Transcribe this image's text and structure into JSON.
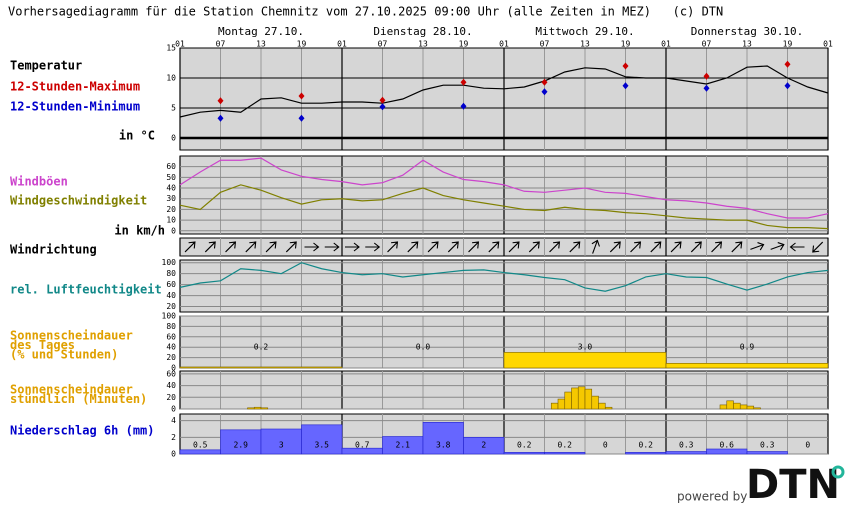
{
  "title": "Vorhersagediagramm für die Station Chemnitz vom 27.10.2025 09:00 Uhr (alle Zeiten in MEZ)   (c) DTN",
  "powered_by": "powered by",
  "logo": "DTN",
  "chart_data": [
    {
      "type": "line",
      "label": "Temperatur",
      "unit": "in °C",
      "days": [
        "Montag 27.10.",
        "Dienstag 28.10.",
        "Mittwoch 29.10.",
        "Donnerstag 30.10."
      ],
      "xlim": [
        0,
        96
      ],
      "xticks": [
        {
          "value": 0,
          "label": "01"
        },
        {
          "value": 6,
          "label": "07"
        },
        {
          "value": 12,
          "label": "13"
        },
        {
          "value": 18,
          "label": "19"
        },
        {
          "value": 24,
          "label": "01"
        },
        {
          "value": 30,
          "label": "07"
        },
        {
          "value": 36,
          "label": "13"
        },
        {
          "value": 42,
          "label": "19"
        },
        {
          "value": 48,
          "label": "01"
        },
        {
          "value": 54,
          "label": "07"
        },
        {
          "value": 60,
          "label": "13"
        },
        {
          "value": 66,
          "label": "19"
        },
        {
          "value": 72,
          "label": "01"
        },
        {
          "value": 78,
          "label": "07"
        },
        {
          "value": 84,
          "label": "13"
        },
        {
          "value": 90,
          "label": "19"
        },
        {
          "value": 96,
          "label": "01"
        }
      ],
      "ylim": [
        -2,
        15
      ],
      "yticks": [
        0,
        5,
        10,
        15
      ],
      "x": [
        0,
        3,
        6,
        9,
        12,
        15,
        18,
        21,
        24,
        27,
        30,
        33,
        36,
        39,
        42,
        45,
        48,
        51,
        54,
        57,
        60,
        63,
        66,
        69,
        72,
        75,
        78,
        81,
        84,
        87,
        90,
        93,
        96
      ],
      "series": [
        {
          "color": "#000000",
          "values": [
            3.5,
            4.3,
            4.6,
            4.3,
            6.5,
            6.7,
            5.8,
            5.8,
            6.0,
            6.0,
            5.8,
            6.5,
            8.0,
            8.8,
            8.8,
            8.3,
            8.2,
            8.5,
            9.5,
            11,
            11.7,
            11.5,
            10.2,
            10,
            10,
            9.5,
            9,
            10,
            11.8,
            12,
            10,
            8.5,
            7.5
          ]
        }
      ],
      "markers": [
        {
          "name": "12-Stunden-Maximum",
          "color": "#cc0000",
          "x": [
            6,
            18,
            30,
            42,
            54,
            66,
            78,
            90
          ],
          "values": [
            6.2,
            7.0,
            6.3,
            9.3,
            9.3,
            12,
            10.3,
            12.3
          ]
        },
        {
          "name": "12-Stunden-Minimum",
          "color": "#0000cc",
          "x": [
            6,
            18,
            30,
            42,
            54,
            66,
            78,
            90
          ],
          "values": [
            3.3,
            3.3,
            5.2,
            5.3,
            7.7,
            8.7,
            8.3,
            8.7
          ]
        }
      ]
    },
    {
      "type": "line",
      "unit": "in km/h",
      "ylim": [
        -3,
        70
      ],
      "yticks": [
        0,
        10,
        20,
        30,
        40,
        50,
        60
      ],
      "x": [
        0,
        3,
        6,
        9,
        12,
        15,
        18,
        21,
        24,
        27,
        30,
        33,
        36,
        39,
        42,
        45,
        48,
        51,
        54,
        57,
        60,
        63,
        66,
        69,
        72,
        75,
        78,
        81,
        84,
        87,
        90,
        93,
        96
      ],
      "series": [
        {
          "name": "Windböen",
          "color": "#cc44cc",
          "values": [
            43,
            55,
            66,
            66,
            68,
            57,
            51,
            48,
            46,
            43,
            45,
            52,
            66,
            55,
            48,
            46,
            43,
            37,
            36,
            38,
            40,
            36,
            35,
            32,
            29,
            28,
            26,
            23,
            21,
            16,
            12,
            12,
            16
          ]
        },
        {
          "name": "Windgeschwindigkeit",
          "color": "#808000",
          "values": [
            24,
            20,
            36,
            43,
            38,
            31,
            25,
            29,
            30,
            28,
            29,
            35,
            40,
            33,
            29,
            26,
            23,
            20,
            19,
            22,
            20,
            19,
            17,
            16,
            14,
            12,
            11,
            10,
            10,
            5,
            3,
            3,
            2
          ]
        }
      ]
    },
    {
      "type": "arrows",
      "label": "Windrichtung",
      "x": [
        0,
        3,
        6,
        9,
        12,
        15,
        18,
        21,
        24,
        27,
        30,
        33,
        36,
        39,
        42,
        45,
        48,
        51,
        54,
        57,
        60,
        63,
        66,
        69,
        72,
        75,
        78,
        81,
        84,
        87,
        90,
        93
      ],
      "directions": [
        225,
        225,
        225,
        225,
        225,
        225,
        270,
        270,
        270,
        270,
        225,
        225,
        225,
        225,
        225,
        225,
        225,
        225,
        225,
        225,
        200,
        225,
        225,
        225,
        225,
        225,
        225,
        225,
        250,
        250,
        90,
        45
      ]
    },
    {
      "type": "line",
      "ylim": [
        10,
        105
      ],
      "yticks": [
        20,
        40,
        60,
        80,
        100
      ],
      "x": [
        0,
        3,
        6,
        9,
        12,
        15,
        18,
        21,
        24,
        27,
        30,
        33,
        36,
        39,
        42,
        45,
        48,
        51,
        54,
        57,
        60,
        63,
        66,
        69,
        72,
        75,
        78,
        81,
        84,
        87,
        90,
        93,
        96
      ],
      "series": [
        {
          "name": "rel. Luftfeuchtigkeit",
          "color": "#118888",
          "values": [
            55,
            63,
            67,
            89,
            86,
            80,
            100,
            89,
            82,
            78,
            80,
            74,
            78,
            82,
            86,
            87,
            82,
            78,
            73,
            69,
            54,
            48,
            58,
            74,
            80,
            74,
            73,
            61,
            50,
            61,
            74,
            82,
            86
          ]
        }
      ]
    },
    {
      "type": "bar",
      "label": [
        "Sonnenscheindauer",
        "des Tages",
        "(% und Stunden)"
      ],
      "color": "#ffd700",
      "ylim": [
        0,
        100
      ],
      "yticks": [
        0,
        20,
        40,
        60,
        80,
        100
      ],
      "values": [
        2,
        0,
        30,
        9
      ],
      "labels": [
        "0.2",
        "0.0",
        "3.0",
        "0.9"
      ]
    },
    {
      "type": "bar",
      "label": [
        "Sonnenscheindauer",
        "stündlich (Minuten)"
      ],
      "color": "#f5c800",
      "ylim": [
        0,
        65
      ],
      "yticks": [
        0,
        20,
        40,
        60
      ],
      "x": [
        10,
        11,
        12,
        55,
        56,
        57,
        58,
        59,
        60,
        61,
        62,
        63,
        80,
        81,
        82,
        83,
        84,
        85
      ],
      "values": [
        2,
        3,
        2,
        10,
        17,
        29,
        36,
        38,
        34,
        22,
        10,
        3,
        7,
        14,
        10,
        7,
        5,
        2
      ]
    },
    {
      "type": "bar",
      "label": "Niederschlag 6h (mm)",
      "color": "#6666ff",
      "ylim": [
        0,
        4.8
      ],
      "yticks": [
        0,
        2,
        4
      ],
      "show_values": true,
      "values": [
        0.5,
        2.9,
        3,
        3.5,
        0.7,
        2.1,
        3.8,
        2,
        0.2,
        0.2,
        0,
        0.2,
        0.3,
        0.6,
        0.3,
        0
      ]
    }
  ]
}
